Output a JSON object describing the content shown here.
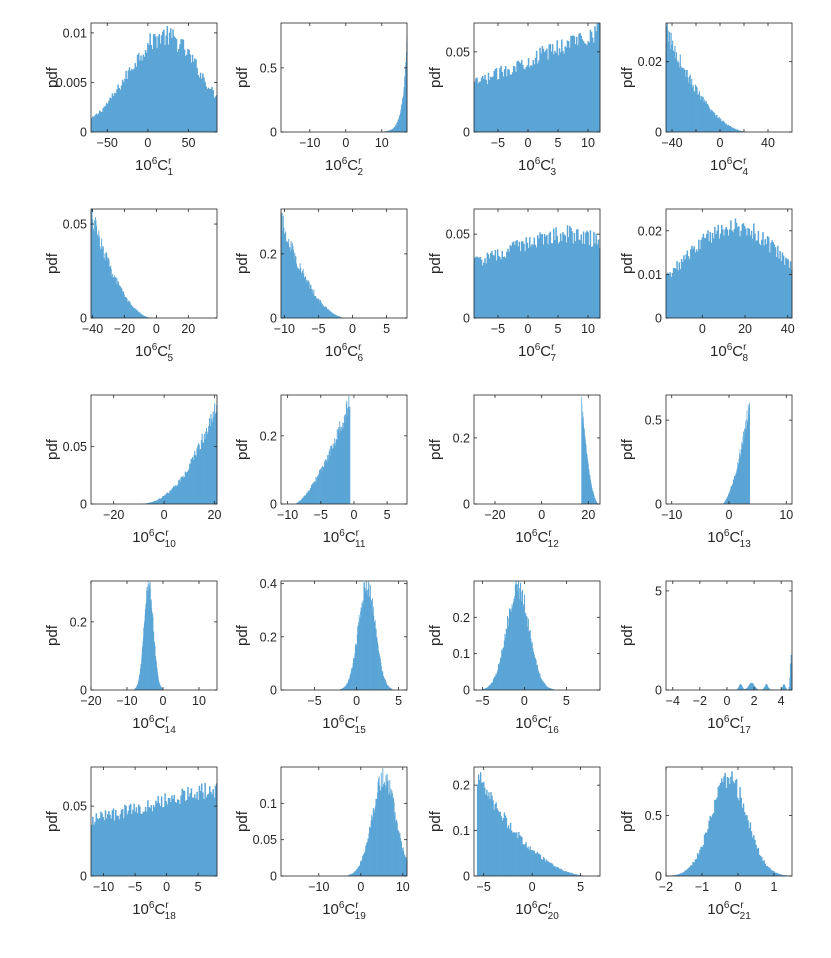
{
  "figure": {
    "bar_color": "#5aa5d6",
    "axis_color": "#262626",
    "ylabel": "pdf",
    "xlabel_coefficient": "C",
    "xlabel_superscript": "r",
    "xlabel_scale_base": "10",
    "xlabel_scale_exponent": "6"
  },
  "chart_data": [
    {
      "type": "histogram",
      "index": "1",
      "xlim": [
        -70,
        85
      ],
      "ylim": [
        0,
        0.011
      ],
      "xticks": [
        -50,
        0,
        50
      ],
      "yticks": [
        0,
        0.005,
        0.01
      ],
      "ytick_labels": [
        "0",
        "0.005",
        "0.01"
      ],
      "shape": "gauss",
      "params": {
        "mu": 20,
        "sigma": 45
      },
      "range": [
        -70,
        85
      ],
      "peak": 0.0097,
      "grid": false
    },
    {
      "type": "histogram",
      "index": "2",
      "xlim": [
        -18,
        17
      ],
      "ylim": [
        0,
        0.85
      ],
      "xticks": [
        -10,
        0,
        10
      ],
      "yticks": [
        0,
        0.5
      ],
      "ytick_labels": [
        "0",
        "0.5"
      ],
      "shape": "exp_right",
      "params": {
        "scale": 1.2
      },
      "range": [
        10.5,
        17
      ],
      "peak": 0.72,
      "grid": false
    },
    {
      "type": "histogram",
      "index": "3",
      "xlim": [
        -9,
        12
      ],
      "ylim": [
        0,
        0.068
      ],
      "xticks": [
        -5,
        0,
        5,
        10
      ],
      "yticks": [
        0,
        0.05
      ],
      "ytick_labels": [
        "0",
        "0.05"
      ],
      "shape": "linear",
      "params": {
        "a": 0.03,
        "b": 0.064
      },
      "range": [
        -9,
        12
      ],
      "peak": 0.064,
      "grid": false
    },
    {
      "type": "histogram",
      "index": "4",
      "xlim": [
        -45,
        60
      ],
      "ylim": [
        0,
        0.031
      ],
      "xticks": [
        -40,
        -20,
        0,
        20,
        40
      ],
      "xtick_labels": [
        "-40",
        "",
        "0",
        "",
        "40"
      ],
      "yticks": [
        0,
        0.02
      ],
      "ytick_labels": [
        "0",
        "0.02"
      ],
      "shape": "quad_left",
      "params": {
        "end": 25
      },
      "range": [
        -45,
        25
      ],
      "peak": 0.029,
      "grid": false
    },
    {
      "type": "histogram",
      "index": "5",
      "xlim": [
        -41,
        38
      ],
      "ylim": [
        0,
        0.058
      ],
      "xticks": [
        -40,
        -20,
        0,
        20
      ],
      "yticks": [
        0,
        0.05
      ],
      "ytick_labels": [
        "0",
        "0.05"
      ],
      "shape": "quad_left",
      "params": {
        "end": -2
      },
      "range": [
        -41,
        -2
      ],
      "peak": 0.056,
      "grid": false
    },
    {
      "type": "histogram",
      "index": "6",
      "xlim": [
        -10.5,
        8
      ],
      "ylim": [
        0,
        0.34
      ],
      "xticks": [
        -10,
        -5,
        0,
        5
      ],
      "yticks": [
        0,
        0.2
      ],
      "ytick_labels": [
        "0",
        "0.2"
      ],
      "shape": "quad_left",
      "params": {
        "end": -0.8
      },
      "range": [
        -10.5,
        -0.8
      ],
      "peak": 0.31,
      "grid": false
    },
    {
      "type": "histogram",
      "index": "7",
      "xlim": [
        -9,
        12
      ],
      "ylim": [
        0,
        0.065
      ],
      "xticks": [
        -5,
        0,
        5,
        10
      ],
      "yticks": [
        0,
        0.05
      ],
      "ytick_labels": [
        "0",
        "0.05"
      ],
      "shape": "hump",
      "params": {
        "base": 0.03,
        "mu": 6,
        "sigma": 8,
        "peak": 0.05
      },
      "range": [
        -9,
        12
      ],
      "peak": 0.05,
      "grid": false
    },
    {
      "type": "histogram",
      "index": "8",
      "xlim": [
        -17,
        42
      ],
      "ylim": [
        0,
        0.025
      ],
      "xticks": [
        0,
        20,
        40
      ],
      "yticks": [
        0,
        0.01,
        0.02
      ],
      "ytick_labels": [
        "0",
        "0.01",
        "0.02"
      ],
      "shape": "gauss",
      "params": {
        "mu": 15,
        "sigma": 25
      },
      "range": [
        -17,
        42
      ],
      "peak": 0.021,
      "grid": false
    },
    {
      "type": "histogram",
      "index": "10",
      "xlim": [
        -29,
        21
      ],
      "ylim": [
        0,
        0.095
      ],
      "xticks": [
        -20,
        0,
        20
      ],
      "yticks": [
        0,
        0.05
      ],
      "ytick_labels": [
        "0",
        "0.05"
      ],
      "shape": "grow",
      "params": {
        "start": -11,
        "end": 21,
        "power": 2.4
      },
      "range": [
        -11,
        21
      ],
      "peak": 0.092,
      "grid": false
    },
    {
      "type": "histogram",
      "index": "11",
      "xlim": [
        -11,
        8
      ],
      "ylim": [
        0,
        0.32
      ],
      "xticks": [
        -10,
        -5,
        0,
        5
      ],
      "yticks": [
        0,
        0.2
      ],
      "ytick_labels": [
        "0",
        "0.2"
      ],
      "shape": "grow",
      "params": {
        "start": -9,
        "end": -0.6,
        "power": 1.5
      },
      "range": [
        -9,
        -0.6
      ],
      "peak": 0.3,
      "grid": false
    },
    {
      "type": "histogram",
      "index": "12",
      "xlim": [
        -29,
        25
      ],
      "ylim": [
        0,
        0.33
      ],
      "xticks": [
        -20,
        0,
        20
      ],
      "yticks": [
        0,
        0.2
      ],
      "ytick_labels": [
        "0",
        "0.2"
      ],
      "shape": "decay",
      "params": {
        "start": 17,
        "end": 24.5
      },
      "range": [
        17,
        24.5
      ],
      "peak": 0.3,
      "grid": false
    },
    {
      "type": "histogram",
      "index": "13",
      "xlim": [
        -11,
        11
      ],
      "ylim": [
        0,
        0.65
      ],
      "xticks": [
        -10,
        0,
        10
      ],
      "yticks": [
        0,
        0.5
      ],
      "ytick_labels": [
        "0",
        "0.5"
      ],
      "shape": "grow",
      "params": {
        "start": -1.2,
        "end": 3.6,
        "power": 1.6
      },
      "range": [
        -1.2,
        3.6
      ],
      "peak": 0.6,
      "grid": false
    },
    {
      "type": "histogram",
      "index": "14",
      "xlim": [
        -20,
        15
      ],
      "ylim": [
        0,
        0.32
      ],
      "xticks": [
        -20,
        -10,
        0,
        10
      ],
      "yticks": [
        0,
        0.2
      ],
      "ytick_labels": [
        "0",
        "0.2"
      ],
      "shape": "gauss",
      "params": {
        "mu": -4,
        "sigma": 1.3
      },
      "range": [
        -8,
        0
      ],
      "peak": 0.3,
      "grid": false
    },
    {
      "type": "histogram",
      "index": "15",
      "xlim": [
        -9,
        6
      ],
      "ylim": [
        0,
        0.41
      ],
      "xticks": [
        -5,
        0,
        5
      ],
      "yticks": [
        0,
        0.2,
        0.4
      ],
      "ytick_labels": [
        "0",
        "0.2",
        "0.4"
      ],
      "shape": "gauss",
      "params": {
        "mu": 1.2,
        "sigma": 1.0
      },
      "range": [
        -2,
        4.2
      ],
      "peak": 0.39,
      "grid": false
    },
    {
      "type": "histogram",
      "index": "16",
      "xlim": [
        -6,
        9
      ],
      "ylim": [
        0,
        0.3
      ],
      "xticks": [
        -5,
        0,
        5
      ],
      "yticks": [
        0,
        0.1,
        0.2
      ],
      "ytick_labels": [
        "0",
        "0.1",
        "0.2"
      ],
      "shape": "gauss",
      "params": {
        "mu": -0.8,
        "sigma": 1.35
      },
      "range": [
        -5,
        3.5
      ],
      "peak": 0.28,
      "grid": false
    },
    {
      "type": "histogram",
      "index": "17",
      "xlim": [
        -4.5,
        4.8
      ],
      "ylim": [
        0,
        5.5
      ],
      "xticks": [
        -4,
        -2,
        0,
        2,
        4
      ],
      "yticks": [
        0,
        5
      ],
      "ytick_labels": [
        "0",
        "5"
      ],
      "shape": "spiky",
      "params": {},
      "range": [
        -0.5,
        4.8
      ],
      "peak": 1.8,
      "grid": false
    },
    {
      "type": "histogram",
      "index": "18",
      "xlim": [
        -12,
        8
      ],
      "ylim": [
        0,
        0.078
      ],
      "xticks": [
        -10,
        -5,
        0,
        5
      ],
      "yticks": [
        0,
        0.05
      ],
      "ytick_labels": [
        "0",
        "0.05"
      ],
      "shape": "linear",
      "params": {
        "a": 0.04,
        "b": 0.063
      },
      "range": [
        -12,
        8
      ],
      "peak": 0.063,
      "grid": false
    },
    {
      "type": "histogram",
      "index": "19",
      "xlim": [
        -19,
        11
      ],
      "ylim": [
        0,
        0.15
      ],
      "xticks": [
        -10,
        0,
        10
      ],
      "yticks": [
        0,
        0.05,
        0.1
      ],
      "ytick_labels": [
        "0",
        "0.05",
        "0.1"
      ],
      "shape": "gauss",
      "params": {
        "mu": 5.5,
        "sigma": 2.8
      },
      "range": [
        -3,
        11
      ],
      "peak": 0.135,
      "grid": false
    },
    {
      "type": "histogram",
      "index": "20",
      "xlim": [
        -6,
        7
      ],
      "ylim": [
        0,
        0.24
      ],
      "xticks": [
        -5,
        0,
        5
      ],
      "yticks": [
        0,
        0.1,
        0.2
      ],
      "ytick_labels": [
        "0",
        "0.1",
        "0.2"
      ],
      "shape": "quad_left",
      "params": {
        "end": 6
      },
      "range": [
        -5.7,
        6
      ],
      "peak": 0.22,
      "grid": false
    },
    {
      "type": "histogram",
      "index": "21",
      "xlim": [
        -2,
        1.5
      ],
      "ylim": [
        0,
        0.9
      ],
      "xticks": [
        -2,
        -1,
        0,
        1
      ],
      "yticks": [
        0,
        0.5
      ],
      "ytick_labels": [
        "0",
        "0.5"
      ],
      "shape": "gauss",
      "params": {
        "mu": -0.25,
        "sigma": 0.5
      },
      "range": [
        -2,
        1.5
      ],
      "peak": 0.8,
      "grid": false
    }
  ]
}
